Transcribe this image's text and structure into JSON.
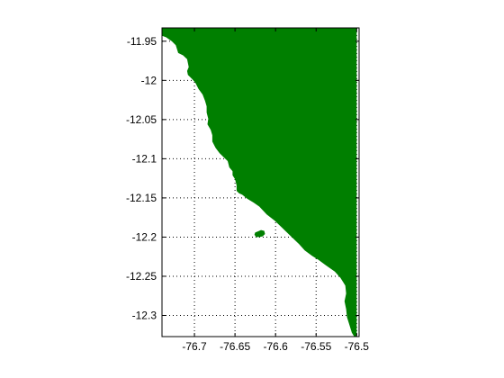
{
  "chart_data": {
    "type": "map",
    "xlim": [
      -76.74,
      -76.497
    ],
    "ylim": [
      -12.327,
      -11.933
    ],
    "grid": true,
    "grid_style": "dotted",
    "x_ticks": [
      -76.7,
      -76.65,
      -76.6,
      -76.55,
      -76.5
    ],
    "y_ticks": [
      -11.95,
      -12.0,
      -12.05,
      -12.1,
      -12.15,
      -12.2,
      -12.25,
      -12.3
    ],
    "x_tick_labels": [
      "-76.7",
      "-76.65",
      "-76.6",
      "-76.55",
      "-76.5"
    ],
    "y_tick_labels": [
      "-11.95",
      "-12",
      "-12.05",
      "-12.1",
      "-12.15",
      "-12.2",
      "-12.25",
      "-12.3"
    ],
    "land_color": "#007f00",
    "coastline": [
      [
        -76.5,
        -11.933
      ],
      [
        -76.74,
        -11.933
      ],
      [
        -76.74,
        -11.943
      ],
      [
        -76.735,
        -11.945
      ],
      [
        -76.728,
        -11.95
      ],
      [
        -76.723,
        -11.955
      ],
      [
        -76.72,
        -11.965
      ],
      [
        -76.714,
        -11.968
      ],
      [
        -76.709,
        -11.973
      ],
      [
        -76.707,
        -11.983
      ],
      [
        -76.709,
        -11.988
      ],
      [
        -76.708,
        -11.993
      ],
      [
        -76.703,
        -11.998
      ],
      [
        -76.699,
        -12.003
      ],
      [
        -76.695,
        -12.011
      ],
      [
        -76.69,
        -12.018
      ],
      [
        -76.687,
        -12.026
      ],
      [
        -76.685,
        -12.033
      ],
      [
        -76.685,
        -12.041
      ],
      [
        -76.683,
        -12.049
      ],
      [
        -76.684,
        -12.056
      ],
      [
        -76.68,
        -12.063
      ],
      [
        -76.678,
        -12.07
      ],
      [
        -76.678,
        -12.078
      ],
      [
        -76.674,
        -12.086
      ],
      [
        -76.669,
        -12.093
      ],
      [
        -76.664,
        -12.098
      ],
      [
        -76.659,
        -12.103
      ],
      [
        -76.657,
        -12.111
      ],
      [
        -76.653,
        -12.116
      ],
      [
        -76.653,
        -12.121
      ],
      [
        -76.65,
        -12.126
      ],
      [
        -76.648,
        -12.134
      ],
      [
        -76.648,
        -12.141
      ],
      [
        -76.645,
        -12.144
      ],
      [
        -76.641,
        -12.146
      ],
      [
        -76.635,
        -12.151
      ],
      [
        -76.627,
        -12.156
      ],
      [
        -76.62,
        -12.161
      ],
      [
        -76.611,
        -12.171
      ],
      [
        -76.601,
        -12.179
      ],
      [
        -76.591,
        -12.189
      ],
      [
        -76.581,
        -12.199
      ],
      [
        -76.571,
        -12.209
      ],
      [
        -76.564,
        -12.217
      ],
      [
        -76.555,
        -12.224
      ],
      [
        -76.547,
        -12.229
      ],
      [
        -76.538,
        -12.236
      ],
      [
        -76.527,
        -12.244
      ],
      [
        -76.52,
        -12.252
      ],
      [
        -76.514,
        -12.262
      ],
      [
        -76.513,
        -12.272
      ],
      [
        -76.515,
        -12.282
      ],
      [
        -76.513,
        -12.292
      ],
      [
        -76.512,
        -12.302
      ],
      [
        -76.509,
        -12.312
      ],
      [
        -76.506,
        -12.322
      ],
      [
        -76.503,
        -12.327
      ],
      [
        -76.5,
        -12.327
      ]
    ],
    "island": [
      [
        -76.622,
        -12.193
      ],
      [
        -76.618,
        -12.191
      ],
      [
        -76.614,
        -12.192
      ],
      [
        -76.613,
        -12.196
      ],
      [
        -76.616,
        -12.199
      ],
      [
        -76.62,
        -12.2
      ],
      [
        -76.624,
        -12.2
      ],
      [
        -76.626,
        -12.197
      ],
      [
        -76.625,
        -12.194
      ]
    ]
  }
}
